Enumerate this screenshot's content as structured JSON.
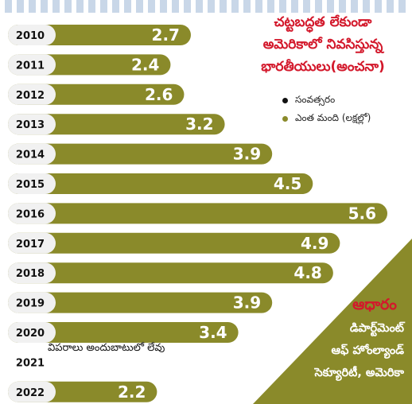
{
  "chart_data": {
    "type": "bar",
    "orientation": "horizontal",
    "title_lines": [
      "చట్టబద్ధత లేకుండా",
      "అమెరికాలో నివసిస్తున్న",
      "భారతీయులు(అంచనా)"
    ],
    "legend": [
      {
        "label": "సంవత్సరం",
        "color": "#111111"
      },
      {
        "label": "ఎంత మంది (లక్షల్లో)",
        "color": "#8a8a2a"
      }
    ],
    "categories": [
      "2010",
      "2011",
      "2012",
      "2013",
      "2014",
      "2015",
      "2016",
      "2017",
      "2018",
      "2019",
      "2020",
      "2021",
      "2022"
    ],
    "values": [
      2.7,
      2.4,
      2.6,
      3.2,
      3.9,
      4.5,
      5.6,
      4.9,
      4.8,
      3.9,
      3.4,
      null,
      2.2
    ],
    "value_labels": [
      "2.7",
      "2.4",
      "2.6",
      "3.2",
      "3.9",
      "4.5",
      "5.6",
      "4.9",
      "4.8",
      "3.9",
      "3.4",
      "",
      "2.2"
    ],
    "missing_note": "విపరాలు అందుబాటులో లేవు",
    "bar_color": "#8a8a2a",
    "year_badge_color": "#f1f1f1"
  },
  "source": {
    "label": "ఆధారం",
    "lines": [
      "డిపార్ట్‌మెంట్",
      "ఆఫ్ హోంల్యాండ్",
      "సెక్యూరిటీ, అమెరికా"
    ]
  }
}
